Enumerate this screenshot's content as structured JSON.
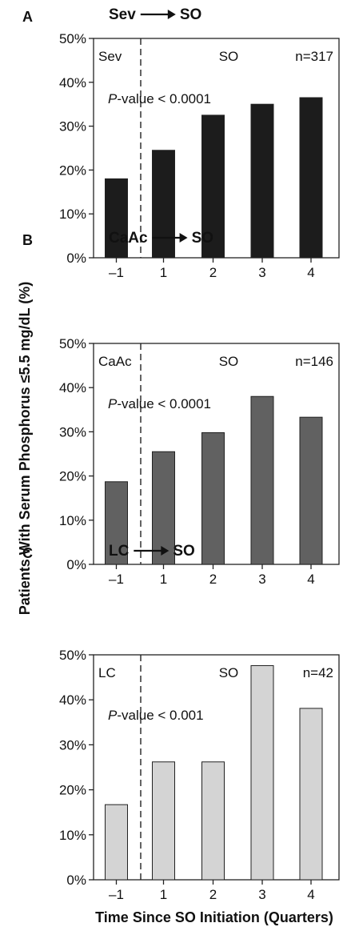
{
  "figure": {
    "ylabel": "Patients With Serum Phosphorus ≤5.5 mg/dL (%)",
    "xlabel": "Time Since SO Initiation (Quarters)"
  },
  "chart_data": [
    {
      "type": "bar",
      "panel": "A",
      "title_from": "Sev",
      "title_to": "SO",
      "pre_label": "Sev",
      "post_label": "SO",
      "n_label": "n=317",
      "p_label_italic": "P",
      "p_label_rest": "-value < 0.0001",
      "categories": [
        "–1",
        "1",
        "2",
        "3",
        "4"
      ],
      "values": [
        18,
        24.5,
        32.5,
        35,
        36.5
      ],
      "ylim": [
        0,
        50
      ],
      "yticks": [
        "0%",
        "10%",
        "20%",
        "30%",
        "40%",
        "50%"
      ],
      "bar_color": "#1c1c1c"
    },
    {
      "type": "bar",
      "panel": "B",
      "title_from": "CaAc",
      "title_to": "SO",
      "pre_label": "CaAc",
      "post_label": "SO",
      "n_label": "n=146",
      "p_label_italic": "P",
      "p_label_rest": "-value < 0.0001",
      "categories": [
        "–1",
        "1",
        "2",
        "3",
        "4"
      ],
      "values": [
        18.7,
        25.5,
        29.8,
        38,
        33.3
      ],
      "ylim": [
        0,
        50
      ],
      "yticks": [
        "0%",
        "10%",
        "20%",
        "30%",
        "40%",
        "50%"
      ],
      "bar_color": "#616161"
    },
    {
      "type": "bar",
      "panel": "C",
      "title_from": "LC",
      "title_to": "SO",
      "pre_label": "LC",
      "post_label": "SO",
      "n_label": "n=42",
      "p_label_italic": "P",
      "p_label_rest": "-value < 0.001",
      "categories": [
        "–1",
        "1",
        "2",
        "3",
        "4"
      ],
      "values": [
        16.7,
        26.2,
        26.2,
        47.6,
        38.1
      ],
      "ylim": [
        0,
        50
      ],
      "yticks": [
        "0%",
        "10%",
        "20%",
        "30%",
        "40%",
        "50%"
      ],
      "bar_color": "#d4d4d4"
    }
  ]
}
